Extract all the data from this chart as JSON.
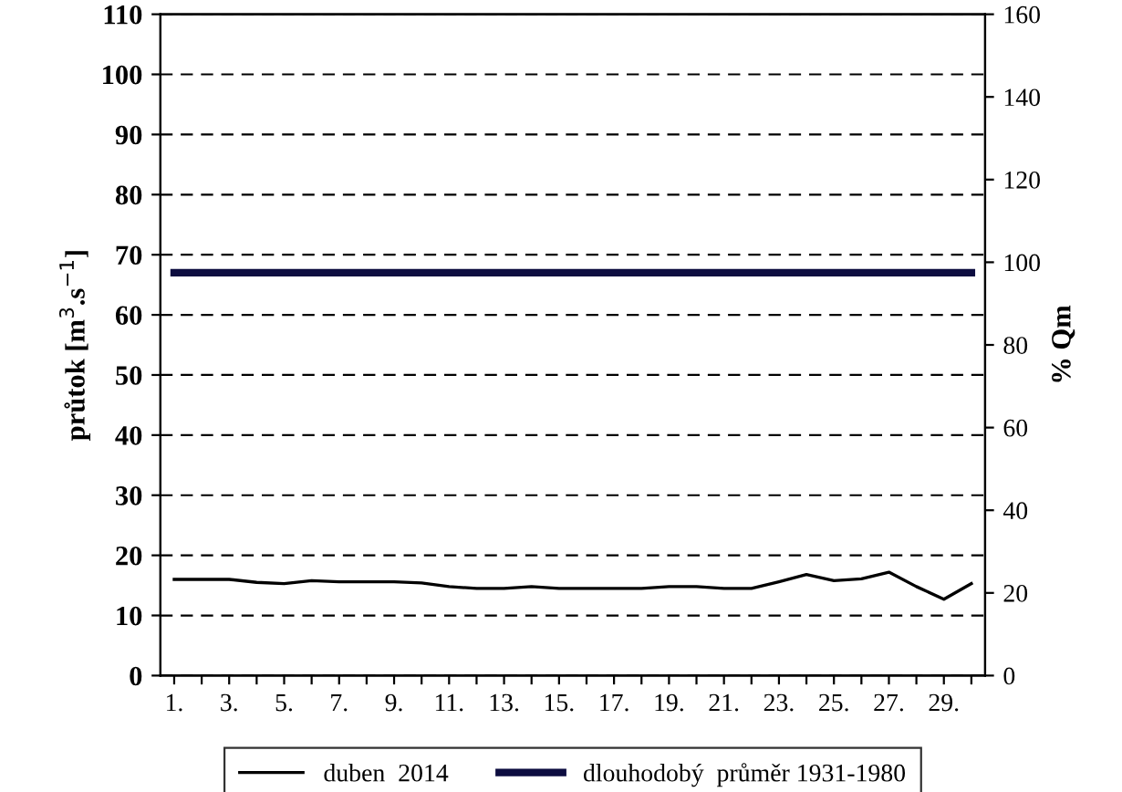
{
  "chart_data": {
    "type": "line",
    "ylabel": "průtok [m$^{3}$.s$^{−1}$]",
    "y2label": "% Qm",
    "categories": [
      "1.",
      null,
      "3.",
      null,
      "5.",
      null,
      "7.",
      null,
      "9.",
      null,
      "11.",
      null,
      "13.",
      null,
      "15.",
      null,
      "17.",
      null,
      "19.",
      null,
      "21.",
      null,
      "23.",
      null,
      "25.",
      null,
      "27.",
      null,
      "29.",
      null
    ],
    "series": [
      {
        "name": "duben  2014",
        "color": "#000000",
        "values": [
          16.0,
          16.0,
          16.0,
          15.5,
          15.3,
          15.8,
          15.6,
          15.6,
          15.6,
          15.4,
          14.8,
          14.5,
          14.5,
          14.8,
          14.5,
          14.5,
          14.5,
          14.5,
          14.8,
          14.8,
          14.5,
          14.5,
          15.6,
          16.8,
          15.8,
          16.1,
          17.2,
          14.8,
          12.7,
          15.3
        ]
      },
      {
        "name": "dlouhodobý  průměr 1931-1980",
        "color": "#0d0d40",
        "values": [
          67,
          67,
          67,
          67,
          67,
          67,
          67,
          67,
          67,
          67,
          67,
          67,
          67,
          67,
          67,
          67,
          67,
          67,
          67,
          67,
          67,
          67,
          67,
          67,
          67,
          67,
          67,
          67,
          67,
          67
        ]
      }
    ],
    "ylim": [
      0,
      110
    ],
    "yticks": [
      0,
      10,
      20,
      30,
      40,
      50,
      60,
      70,
      80,
      90,
      100,
      110
    ],
    "y2lim": [
      0,
      160
    ],
    "y2ticks": [
      0,
      20,
      40,
      60,
      80,
      100,
      120,
      140,
      160
    ],
    "grid": "y",
    "legend": "bottom",
    "marker": "none",
    "line_style": "solid"
  }
}
